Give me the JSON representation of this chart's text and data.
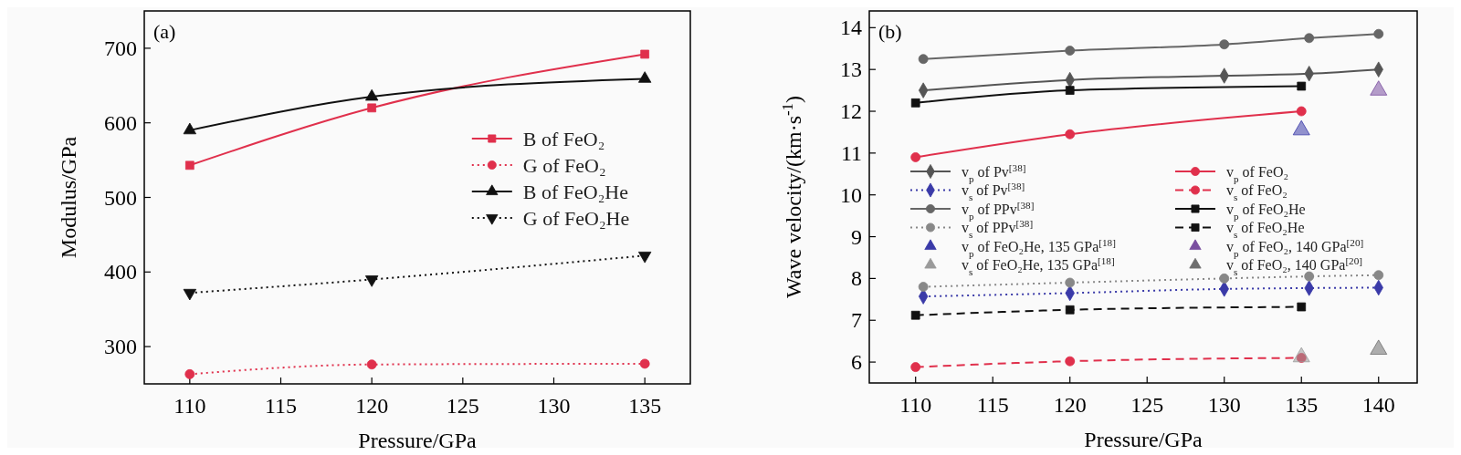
{
  "chart_data": [
    {
      "type": "line",
      "xlabel": "Pressure/GPa",
      "ylabel": "Modulus/GPa",
      "annotations": [
        "(a)"
      ],
      "xlim": [
        107.5,
        137.5
      ],
      "xticks": [
        110,
        115,
        120,
        125,
        130,
        135
      ],
      "ylim": [
        250,
        750
      ],
      "yticks": [
        300,
        400,
        500,
        600,
        700
      ],
      "grid": false,
      "legend": "right",
      "x": [
        110,
        120,
        135
      ],
      "series": [
        {
          "name": "B of FeO₂",
          "color": "#e0304c",
          "values": [
            543,
            620,
            692
          ],
          "marker": "square",
          "line_style": "solid"
        },
        {
          "name": "G of FeO₂",
          "color": "#e0304c",
          "values": [
            263,
            276,
            277
          ],
          "marker": "circle",
          "line_style": "dotted"
        },
        {
          "name": "B of FeO₂He",
          "color": "#111111",
          "values": [
            590,
            635,
            659
          ],
          "marker": "triangle",
          "line_style": "solid"
        },
        {
          "name": "G of FeO₂He",
          "color": "#111111",
          "values": [
            372,
            390,
            422
          ],
          "marker": "triangle-down",
          "line_style": "dotted"
        }
      ]
    },
    {
      "type": "line",
      "xlabel": "Pressure/GPa",
      "ylabel": "Wave velocity/(km·s$^{-1}$)",
      "annotations": [
        "(b)"
      ],
      "xlim": [
        107,
        142.5
      ],
      "xticks": [
        110,
        115,
        120,
        125,
        130,
        135,
        140
      ],
      "ylim": [
        5.5,
        14.4
      ],
      "yticks": [
        6,
        7,
        8,
        9,
        10,
        11,
        12,
        13,
        14
      ],
      "grid": false,
      "legend": "left",
      "series": [
        {
          "name": "v$_{p}$ of Pv$^{[38]}$",
          "color": "#555555",
          "x": [
            110.5,
            120,
            130,
            135.5,
            140
          ],
          "values": [
            12.5,
            12.75,
            12.85,
            12.9,
            13.0
          ],
          "marker": "diamond",
          "line_style": "solid"
        },
        {
          "name": "v$_{s}$ of Pv$^{[38]}$",
          "color": "#3a3aa8",
          "x": [
            110.5,
            120,
            130,
            135.5,
            140
          ],
          "values": [
            7.57,
            7.65,
            7.75,
            7.77,
            7.78
          ],
          "marker": "diamond",
          "line_style": "dotted"
        },
        {
          "name": "v$_{p}$ of PPv$^{[38]}$",
          "color": "#666666",
          "x": [
            110.5,
            120,
            130,
            135.5,
            140
          ],
          "values": [
            13.25,
            13.45,
            13.6,
            13.75,
            13.85
          ],
          "marker": "circle",
          "line_style": "solid"
        },
        {
          "name": "v$_{s}$ of PPv$^{[38]}$",
          "color": "#888888",
          "x": [
            110.5,
            120,
            130,
            135.5,
            140
          ],
          "values": [
            7.8,
            7.9,
            8.0,
            8.05,
            8.08
          ],
          "marker": "circle",
          "line_style": "dotted"
        },
        {
          "type": "scatter",
          "name": "v$_{p}$ of FeO₂He, 135 GPa$^{[18]}$",
          "color": "#3a3aa8",
          "x": [
            135
          ],
          "values": [
            11.55
          ],
          "marker": "triangle"
        },
        {
          "type": "scatter",
          "name": "v$_{s}$ of FeO₂He, 135 GPa$^{[18]}$",
          "color": "#9a9a9a",
          "x": [
            135
          ],
          "values": [
            6.12
          ],
          "marker": "triangle"
        },
        {
          "name": "v$_{p}$ of FeO₂",
          "color": "#e0304c",
          "x": [
            110,
            120,
            135
          ],
          "values": [
            10.9,
            11.45,
            12.0
          ],
          "marker": "circle",
          "line_style": "solid"
        },
        {
          "name": "v$_{s}$ of FeO₂",
          "color": "#e0304c",
          "x": [
            110,
            120,
            135
          ],
          "values": [
            5.88,
            6.02,
            6.1
          ],
          "marker": "circle",
          "line_style": "dashed"
        },
        {
          "name": "v$_{p}$ of FeO₂He",
          "color": "#111111",
          "x": [
            110,
            120,
            135
          ],
          "values": [
            12.2,
            12.5,
            12.6
          ],
          "marker": "square",
          "line_style": "solid"
        },
        {
          "name": "v$_{s}$ of FeO₂He",
          "color": "#111111",
          "x": [
            110,
            120,
            135
          ],
          "values": [
            7.12,
            7.25,
            7.32
          ],
          "marker": "square",
          "line_style": "dashed"
        },
        {
          "type": "scatter",
          "name": "v$_{p}$ of FeO₂, 140 GPa$^{[20]}$",
          "color": "#7a4fa0",
          "x": [
            140
          ],
          "values": [
            12.5
          ],
          "marker": "triangle"
        },
        {
          "type": "scatter",
          "name": "v$_{s}$ of FeO₂, 140 GPa$^{[20]}$",
          "color": "#6e6e6e",
          "x": [
            140
          ],
          "values": [
            6.3
          ],
          "marker": "triangle"
        }
      ]
    }
  ]
}
